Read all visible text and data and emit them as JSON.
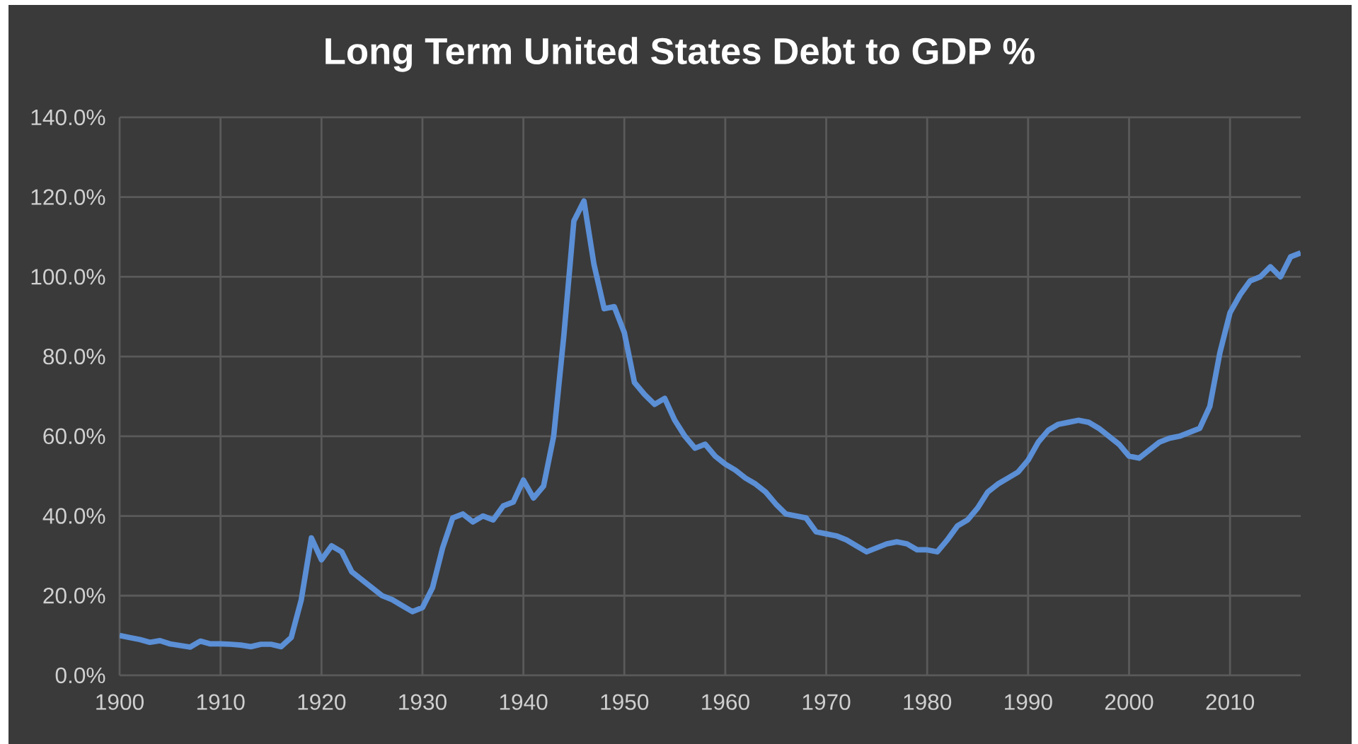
{
  "chart_data": {
    "type": "line",
    "title": "Long Term United States Debt to GDP %",
    "x": [
      1900,
      1901,
      1902,
      1903,
      1904,
      1905,
      1906,
      1907,
      1908,
      1909,
      1910,
      1911,
      1912,
      1913,
      1914,
      1915,
      1916,
      1917,
      1918,
      1919,
      1920,
      1921,
      1922,
      1923,
      1924,
      1925,
      1926,
      1927,
      1928,
      1929,
      1930,
      1931,
      1932,
      1933,
      1934,
      1935,
      1936,
      1937,
      1938,
      1939,
      1940,
      1941,
      1942,
      1943,
      1944,
      1945,
      1946,
      1947,
      1948,
      1949,
      1950,
      1951,
      1952,
      1953,
      1954,
      1955,
      1956,
      1957,
      1958,
      1959,
      1960,
      1961,
      1962,
      1963,
      1964,
      1965,
      1966,
      1967,
      1968,
      1969,
      1970,
      1971,
      1972,
      1973,
      1974,
      1975,
      1976,
      1977,
      1978,
      1979,
      1980,
      1981,
      1982,
      1983,
      1984,
      1985,
      1986,
      1987,
      1988,
      1989,
      1990,
      1991,
      1992,
      1993,
      1994,
      1995,
      1996,
      1997,
      1998,
      1999,
      2000,
      2001,
      2002,
      2003,
      2004,
      2005,
      2006,
      2007,
      2008,
      2009,
      2010,
      2011,
      2012,
      2013,
      2014,
      2015,
      2016,
      2017
    ],
    "values": [
      10,
      9.5,
      9,
      8.3,
      8.7,
      7.9,
      7.5,
      7.1,
      8.6,
      7.9,
      7.9,
      7.8,
      7.6,
      7.2,
      7.8,
      7.8,
      7.2,
      9.5,
      19,
      34.5,
      29,
      32.5,
      31,
      26,
      24,
      22,
      20,
      19,
      17.5,
      16,
      17,
      22,
      32,
      39.5,
      40.5,
      38.5,
      40,
      39,
      42.5,
      43.5,
      49,
      44.5,
      47.5,
      60,
      85,
      114,
      119,
      103,
      92,
      92.5,
      86,
      73.5,
      70.5,
      68,
      69.5,
      64,
      60,
      57,
      58,
      55,
      53,
      51.5,
      49.5,
      48,
      46,
      43,
      40.5,
      40,
      39.5,
      36,
      35.5,
      35,
      34,
      32.5,
      31,
      32,
      33,
      33.5,
      33,
      31.5,
      31.5,
      31,
      34,
      37.5,
      39,
      42,
      46,
      48,
      49.5,
      51,
      54,
      58.5,
      61.5,
      63,
      63.5,
      64,
      63.5,
      62,
      60,
      58,
      55,
      54.5,
      56.5,
      58.5,
      59.5,
      60,
      61,
      62,
      67.5,
      81,
      91,
      95.5,
      99,
      100,
      102.5,
      100,
      105,
      106
    ],
    "color": "#5b8fd6",
    "xlim": [
      1900,
      2017
    ],
    "xticks": [
      1900,
      1910,
      1920,
      1930,
      1940,
      1950,
      1960,
      1970,
      1980,
      1990,
      2000,
      2010
    ],
    "ylim": [
      0,
      140
    ],
    "yticks": [
      {
        "value": 0,
        "label": "0.0%"
      },
      {
        "value": 20,
        "label": "20.0%"
      },
      {
        "value": 40,
        "label": "40.0%"
      },
      {
        "value": 60,
        "label": "60.0%"
      },
      {
        "value": 80,
        "label": "80.0%"
      },
      {
        "value": 100,
        "label": "100.0%"
      },
      {
        "value": 120,
        "label": "120.0%"
      },
      {
        "value": 140,
        "label": "140.0%"
      }
    ],
    "grid": true
  }
}
